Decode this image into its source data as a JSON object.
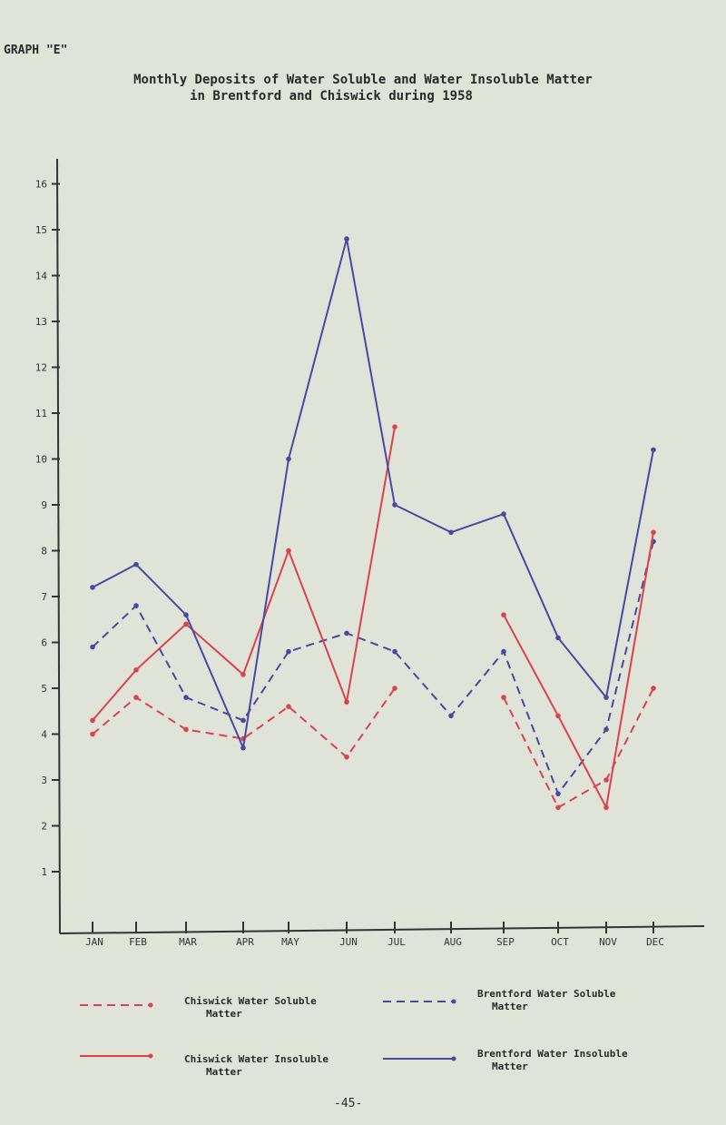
{
  "header": {
    "graph_label": "GRAPH \"E\"",
    "page_number": "-45-"
  },
  "chart_data": {
    "type": "line",
    "title": "Monthly Deposits of Water Soluble and Water Insoluble Matter in Brentford and Chiswick during 1958",
    "title_line1": "Monthly Deposits of Water Soluble and Water Insoluble Matter",
    "title_line2": "in Brentford and Chiswick during 1958",
    "categories": [
      "JAN",
      "FEB",
      "MAR",
      "APR",
      "MAY",
      "JUN",
      "JUL",
      "AUG",
      "SEP",
      "OCT",
      "NOV",
      "DEC"
    ],
    "y_ticks": [
      "1",
      "2",
      "3",
      "4",
      "5",
      "6",
      "7",
      "8",
      "9",
      "10",
      "11",
      "12",
      "13",
      "14",
      "15",
      "16"
    ],
    "ylim": [
      0,
      16.5
    ],
    "grid": false,
    "legend_placement": "bottom",
    "series": [
      {
        "name": "Chiswick Water Soluble Matter",
        "color": "#d9434b",
        "style": "dashed",
        "values": [
          4.0,
          4.8,
          4.1,
          3.9,
          4.6,
          3.5,
          5.0,
          null,
          4.8,
          2.4,
          3.0,
          5.0
        ]
      },
      {
        "name": "Brentford Water Soluble Matter",
        "color": "#4a48a0",
        "style": "dashed",
        "values": [
          5.9,
          6.8,
          4.8,
          4.3,
          5.8,
          6.2,
          5.8,
          4.4,
          5.8,
          2.7,
          4.1,
          8.2
        ]
      },
      {
        "name": "Chiswick Water Insoluble Matter",
        "color": "#d9434b",
        "style": "solid",
        "values": [
          4.3,
          5.4,
          6.4,
          5.3,
          8.0,
          4.7,
          10.7,
          null,
          6.6,
          4.4,
          2.4,
          8.4
        ]
      },
      {
        "name": "Brentford Water Insoluble Matter",
        "color": "#4a48a0",
        "style": "solid",
        "values": [
          7.2,
          7.7,
          6.6,
          3.7,
          10.0,
          14.8,
          9.0,
          8.4,
          8.8,
          6.1,
          4.8,
          10.2
        ]
      }
    ]
  },
  "legend": [
    {
      "line1": "Chiswick Water Soluble",
      "line2": "Matter"
    },
    {
      "line1": "Brentford Water Soluble",
      "line2": "Matter"
    },
    {
      "line1": "Chiswick Water Insoluble",
      "line2": "Matter"
    },
    {
      "line1": "Brentford Water Insoluble",
      "line2": "Matter"
    }
  ]
}
